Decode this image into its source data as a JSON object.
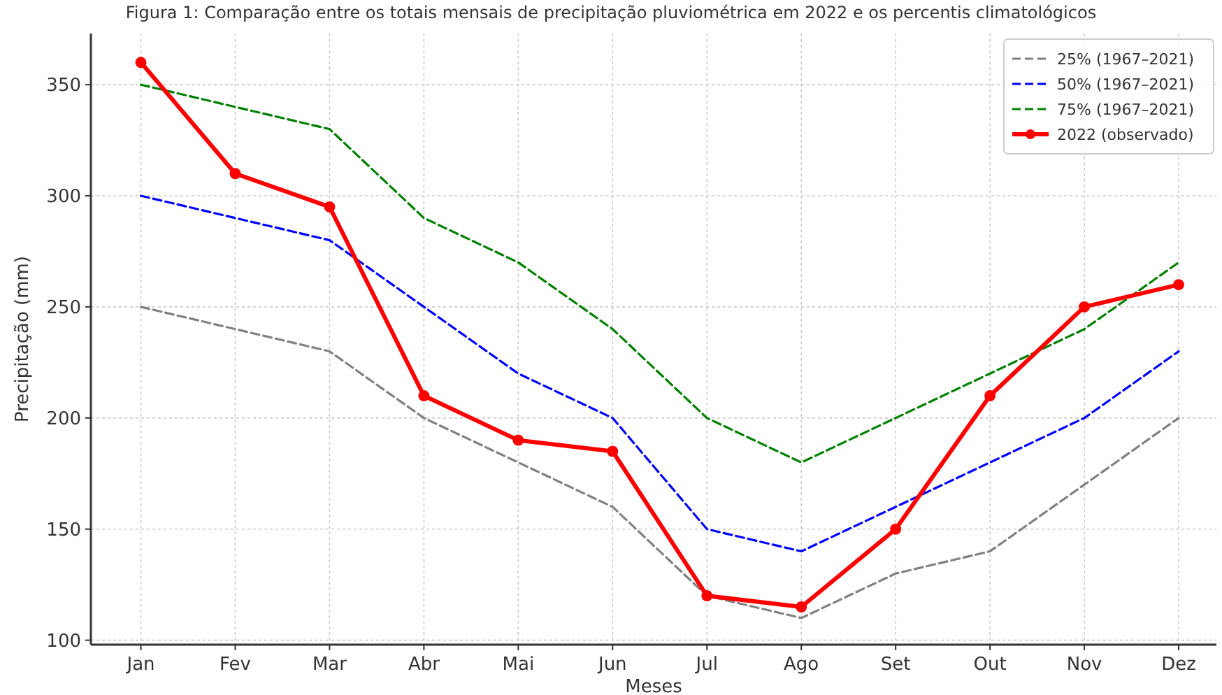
{
  "chart_data": {
    "type": "line",
    "title": "Figura 1: Comparação entre os totais mensais de precipitação pluviométrica em 2022 e os percentis climatológicos",
    "xlabel": "Meses",
    "ylabel": "Precipitação (mm)",
    "categories": [
      "Jan",
      "Fev",
      "Mar",
      "Abr",
      "Mai",
      "Jun",
      "Jul",
      "Ago",
      "Set",
      "Out",
      "Nov",
      "Dez"
    ],
    "series": [
      {
        "name": "25% (1967–2021)",
        "color": "#808080",
        "line_style": "dashed",
        "marker": "none",
        "values": [
          250,
          240,
          230,
          200,
          180,
          160,
          120,
          110,
          130,
          140,
          170,
          200
        ]
      },
      {
        "name": "50% (1967–2021)",
        "color": "#0000ff",
        "line_style": "dashed",
        "marker": "none",
        "values": [
          300,
          290,
          280,
          250,
          220,
          200,
          150,
          140,
          160,
          180,
          200,
          230
        ]
      },
      {
        "name": "75% (1967–2021)",
        "color": "#008000",
        "line_style": "dashed",
        "marker": "none",
        "values": [
          350,
          340,
          330,
          290,
          270,
          240,
          200,
          180,
          200,
          220,
          240,
          270
        ]
      },
      {
        "name": "2022 (observado)",
        "color": "#ff0000",
        "line_style": "solid",
        "marker": "circle",
        "values": [
          360,
          310,
          295,
          210,
          190,
          185,
          120,
          115,
          150,
          210,
          250,
          260
        ]
      }
    ],
    "ylim": [
      98,
      373
    ],
    "yticks": [
      100,
      150,
      200,
      250,
      300,
      350
    ],
    "grid": true,
    "legend": "top right"
  }
}
